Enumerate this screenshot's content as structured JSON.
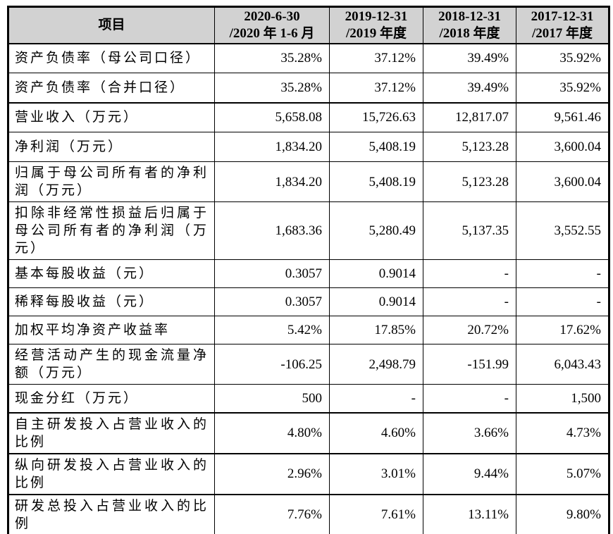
{
  "table": {
    "header": {
      "item_label": "项目",
      "background": "#d2d2d2",
      "periods": [
        {
          "line1": "2020-6-30",
          "line2": "/2020 年 1-6 月"
        },
        {
          "line1": "2019-12-31",
          "line2": "/2019 年度"
        },
        {
          "line1": "2018-12-31",
          "line2": "/2018 年度"
        },
        {
          "line1": "2017-12-31",
          "line2": "/2017 年度"
        }
      ]
    },
    "rows": [
      {
        "label": "资产负债率（母公司口径）",
        "values": [
          "35.28%",
          "37.12%",
          "39.49%",
          "35.92%"
        ]
      },
      {
        "label": "资产负债率（合并口径）",
        "values": [
          "35.28%",
          "37.12%",
          "39.49%",
          "35.92%"
        ]
      },
      {
        "label": "营业收入（万元）",
        "values": [
          "5,658.08",
          "15,726.63",
          "12,817.07",
          "9,561.46"
        ]
      },
      {
        "label": "净利润（万元）",
        "values": [
          "1,834.20",
          "5,408.19",
          "5,123.28",
          "3,600.04"
        ]
      },
      {
        "label": "归属于母公司所有者的净利润（万元）",
        "values": [
          "1,834.20",
          "5,408.19",
          "5,123.28",
          "3,600.04"
        ]
      },
      {
        "label": "扣除非经常性损益后归属于母公司所有者的净利润（万元）",
        "values": [
          "1,683.36",
          "5,280.49",
          "5,137.35",
          "3,552.55"
        ]
      },
      {
        "label": "基本每股收益（元）",
        "values": [
          "0.3057",
          "0.9014",
          "-",
          "-"
        ]
      },
      {
        "label": "稀释每股收益（元）",
        "values": [
          "0.3057",
          "0.9014",
          "-",
          "-"
        ]
      },
      {
        "label": "加权平均净资产收益率",
        "values": [
          "5.42%",
          "17.85%",
          "20.72%",
          "17.62%"
        ]
      },
      {
        "label": "经营活动产生的现金流量净额（万元）",
        "values": [
          "-106.25",
          "2,498.79",
          "-151.99",
          "6,043.43"
        ]
      },
      {
        "label": "现金分红（万元）",
        "values": [
          "500",
          "-",
          "-",
          "1,500"
        ]
      },
      {
        "label": "自主研发投入占营业收入的比例",
        "values": [
          "4.80%",
          "4.60%",
          "3.66%",
          "4.73%"
        ]
      },
      {
        "label": "纵向研发投入占营业收入的比例",
        "values": [
          "2.96%",
          "3.01%",
          "9.44%",
          "5.07%"
        ]
      },
      {
        "label": "研发总投入占营业收入的比例",
        "values": [
          "7.76%",
          "7.61%",
          "13.11%",
          "9.80%"
        ]
      }
    ],
    "colors": {
      "border": "#000000",
      "text": "#000000",
      "header_background": "#d2d2d2"
    }
  }
}
